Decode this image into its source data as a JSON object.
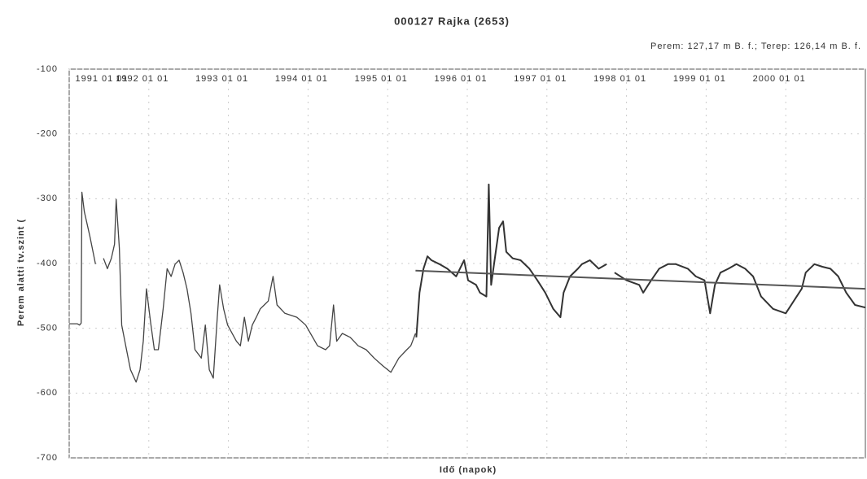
{
  "chart_data": {
    "type": "line",
    "title": "000127 Rajka (2653)",
    "annotation": "Perem: 127,17 m B. f.; Terep: 126,14 m B. f.",
    "x_label": "Idő (napok)",
    "y_label": "Perem alatti tv.szint (",
    "xlim": [
      1991,
      2001
    ],
    "xticks": [
      {
        "value": 1991,
        "label": "1991 01 01"
      },
      {
        "value": 1992,
        "label": "1992 01 01"
      },
      {
        "value": 1993,
        "label": "1993 01 01"
      },
      {
        "value": 1994,
        "label": "1994 01 01"
      },
      {
        "value": 1995,
        "label": "1995 01 01"
      },
      {
        "value": 1996,
        "label": "1996 01 01"
      },
      {
        "value": 1997,
        "label": "1997 01 01"
      },
      {
        "value": 1998,
        "label": "1998 01 01"
      },
      {
        "value": 1999,
        "label": "1999 01 01"
      },
      {
        "value": 2000,
        "label": "2000 01 01"
      }
    ],
    "ylim": [
      -700,
      -100
    ],
    "yticks": [
      -700,
      -600,
      -500,
      -400,
      -300,
      -200,
      -100
    ],
    "grid": true,
    "series": [
      {
        "color": "#444444",
        "x": [
          1991.0,
          1991.1,
          1991.13,
          1991.15,
          1991.16,
          1991.19,
          1991.26,
          1991.33,
          1991.38,
          1991.43,
          1991.48,
          1991.53,
          1991.57,
          1991.59,
          1991.63,
          1991.66,
          1991.72,
          1991.77,
          1991.84,
          1991.89,
          1991.93,
          1991.97,
          1992.02,
          1992.07,
          1992.12,
          1992.18,
          1992.23,
          1992.28,
          1992.33,
          1992.38,
          1992.43,
          1992.48,
          1992.53,
          1992.58,
          1992.66,
          1992.71,
          1992.76,
          1992.81,
          1992.86,
          1992.89,
          1992.94,
          1992.99,
          1993.1,
          1993.15,
          1993.2,
          1993.25,
          1993.3,
          1993.35,
          1993.4,
          1993.45,
          1993.5,
          1993.56,
          1993.61,
          1993.71,
          1993.86,
          1993.97,
          1994.12,
          1994.22,
          1994.27,
          1994.32,
          1994.36,
          1994.43,
          1994.53,
          1994.63,
          1994.73,
          1994.83,
          1994.94,
          1995.04,
          1995.14,
          1995.24,
          1995.29,
          1995.35
        ],
        "values": [
          -493,
          -493,
          -495,
          -492,
          -290,
          -320,
          -358,
          -401,
          null,
          -392,
          -408,
          -392,
          -370,
          -301,
          -376,
          -495,
          -533,
          -564,
          -583,
          -564,
          -520,
          -439,
          -489,
          -533,
          -533,
          -470,
          -408,
          -420,
          -401,
          -395,
          -414,
          -439,
          -477,
          -533,
          -546,
          -495,
          -564,
          -577,
          -483,
          -433,
          -470,
          -495,
          -520,
          -527,
          -483,
          -520,
          -495,
          -483,
          -470,
          -464,
          -458,
          -420,
          -464,
          -477,
          -483,
          -495,
          -527,
          -533,
          -527,
          -464,
          -520,
          -508,
          -514,
          -527,
          -533,
          -546,
          -558,
          -568,
          -546,
          -533,
          -527,
          -508
        ]
      },
      {
        "color": "#333333",
        "x": [
          1995.36,
          1995.4,
          1995.45,
          1995.5,
          1995.55,
          1995.65,
          1995.75,
          1995.86,
          1995.96,
          1996.01,
          1996.11,
          1996.16,
          1996.24,
          1996.27,
          1996.3,
          1996.35,
          1996.4,
          1996.45,
          1996.49,
          1996.57,
          1996.67,
          1996.78,
          1996.88,
          1996.98,
          1997.08,
          1997.17,
          1997.21,
          1997.29,
          1997.39,
          1997.44,
          1997.54,
          1997.65,
          1997.75,
          1997.8,
          1997.85,
          1998.0,
          1998.16,
          1998.21,
          1998.31,
          1998.41,
          1998.52,
          1998.62,
          1998.77,
          1998.87,
          1998.98,
          1999.05,
          1999.11,
          1999.18,
          1999.28,
          1999.38,
          1999.49,
          1999.59,
          1999.69,
          1999.84,
          2000.0,
          2000.1,
          2000.2,
          2000.25,
          2000.36,
          2000.46,
          2000.56,
          2000.66,
          2000.76,
          2000.87,
          2001.0
        ],
        "values": [
          -514,
          -445,
          -408,
          -389,
          -395,
          -401,
          -408,
          -420,
          -395,
          -426,
          -433,
          -445,
          -451,
          -278,
          -433,
          -389,
          -345,
          -335,
          -382,
          -392,
          -395,
          -408,
          -426,
          -445,
          -470,
          -483,
          -445,
          -420,
          -408,
          -401,
          -395,
          -408,
          -401,
          null,
          -414,
          -426,
          -433,
          -445,
          -426,
          -408,
          -401,
          -401,
          -408,
          -420,
          -426,
          -477,
          -433,
          -414,
          -408,
          -401,
          -408,
          -420,
          -451,
          -470,
          -477,
          -458,
          -439,
          -414,
          -401,
          -405,
          -408,
          -420,
          -445,
          -464,
          -468
        ]
      },
      {
        "color": "#555555",
        "x": [
          1995.35,
          2001.0
        ],
        "values": [
          -411,
          -439
        ]
      }
    ]
  }
}
